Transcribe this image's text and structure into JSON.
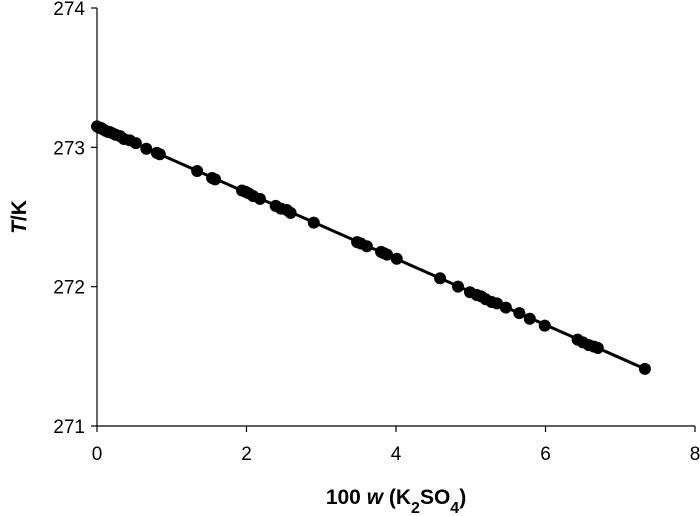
{
  "chart_data": {
    "type": "scatter",
    "xlabel_parts": [
      "100 ",
      "w",
      " (K",
      "2",
      "SO",
      "4",
      ")"
    ],
    "ylabel_parts": [
      "T",
      "/K"
    ],
    "xlim": [
      0,
      8
    ],
    "xticks": [
      0,
      2,
      4,
      6,
      8
    ],
    "ylim": [
      271,
      274
    ],
    "yticks": [
      271,
      272,
      273,
      274
    ],
    "color": "#000000",
    "x": [
      0.0,
      0.03,
      0.05,
      0.08,
      0.11,
      0.15,
      0.17,
      0.21,
      0.25,
      0.31,
      0.36,
      0.44,
      0.52,
      0.66,
      0.8,
      0.84,
      1.34,
      1.54,
      1.58,
      1.94,
      1.99,
      2.03,
      2.09,
      2.18,
      2.39,
      2.46,
      2.54,
      2.59,
      2.9,
      3.48,
      3.53,
      3.61,
      3.8,
      3.84,
      3.88,
      4.01,
      4.59,
      4.83,
      4.99,
      5.08,
      5.14,
      5.2,
      5.28,
      5.35,
      5.47,
      5.65,
      5.79,
      5.99,
      6.43,
      6.5,
      6.58,
      6.65,
      6.7,
      7.33
    ],
    "values": [
      273.15,
      273.14,
      273.14,
      273.13,
      273.12,
      273.11,
      273.11,
      273.1,
      273.09,
      273.08,
      273.06,
      273.05,
      273.03,
      272.99,
      272.96,
      272.95,
      272.83,
      272.78,
      272.77,
      272.69,
      272.68,
      272.67,
      272.65,
      272.63,
      272.58,
      272.56,
      272.55,
      272.53,
      272.46,
      272.32,
      272.31,
      272.29,
      272.25,
      272.24,
      272.23,
      272.2,
      272.06,
      272.0,
      271.96,
      271.94,
      271.93,
      271.91,
      271.89,
      271.88,
      271.85,
      271.81,
      271.77,
      271.72,
      271.62,
      271.6,
      271.58,
      271.57,
      271.56,
      271.41
    ],
    "trend_line": {
      "x": [
        0,
        7.33
      ],
      "values": [
        273.15,
        271.41
      ]
    }
  }
}
